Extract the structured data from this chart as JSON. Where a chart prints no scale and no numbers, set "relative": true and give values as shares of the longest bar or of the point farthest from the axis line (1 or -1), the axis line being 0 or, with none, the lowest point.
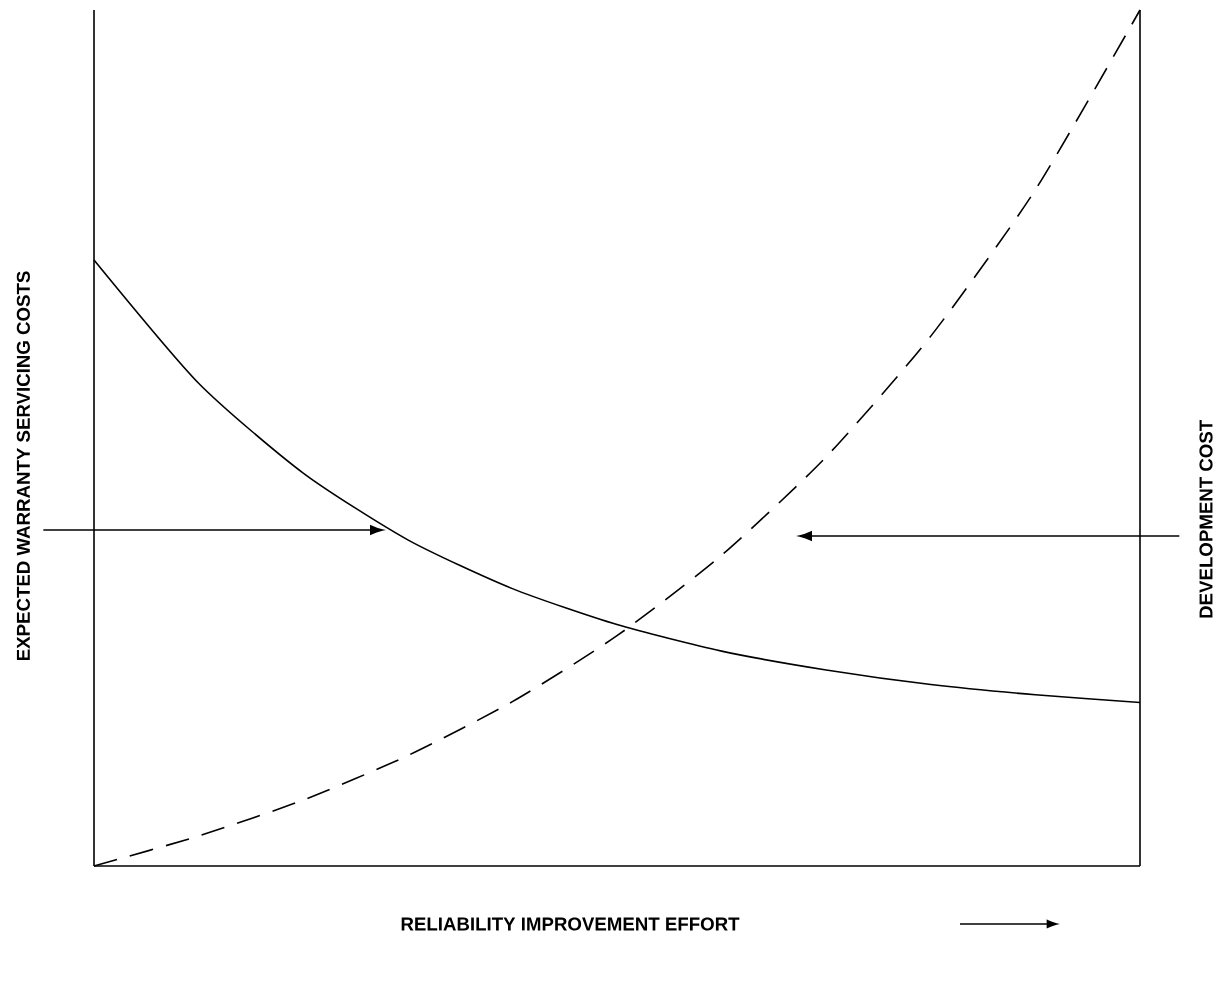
{
  "chart_data": {
    "type": "line",
    "relative": true,
    "xlabel": "RELIABILITY IMPROVEMENT EFFORT",
    "ylabel": "EXPECTED WARRANTY SERVICING COSTS",
    "y2label": "DEVELOPMENT COST",
    "categories": [
      null,
      null,
      null,
      null,
      null,
      null,
      null,
      null,
      null,
      null,
      null
    ],
    "series": [
      {
        "color": "#000000",
        "line_style": "solid",
        "values": [
          0.708,
          0.564,
          0.459,
          0.381,
          0.324,
          0.282,
          0.251,
          0.229,
          0.212,
          0.2,
          0.191
        ]
      },
      {
        "color": "#000000",
        "line_style": "dashed",
        "values": [
          0,
          0.035,
          0.077,
          0.129,
          0.192,
          0.269,
          0.363,
          0.478,
          0.619,
          0.79,
          1
        ]
      }
    ]
  }
}
